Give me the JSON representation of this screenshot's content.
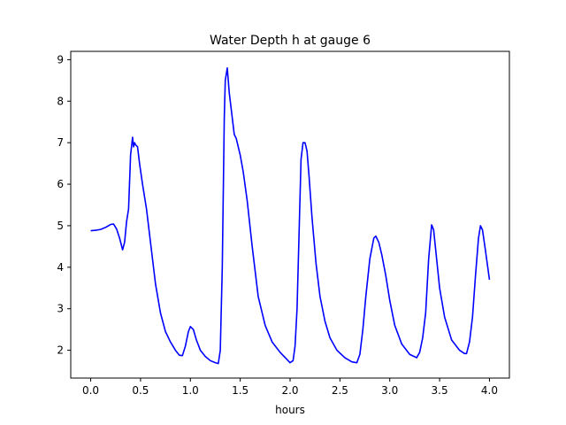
{
  "chart_data": {
    "type": "line",
    "title": "Water Depth h at gauge 6",
    "xlabel": "hours",
    "ylabel": "",
    "xlim": [
      -0.2,
      4.2
    ],
    "ylim": [
      1.33,
      9.2
    ],
    "xticks": [
      0.0,
      0.5,
      1.0,
      1.5,
      2.0,
      2.5,
      3.0,
      3.5,
      4.0
    ],
    "xtick_labels": [
      "0.0",
      "0.5",
      "1.0",
      "1.5",
      "2.0",
      "2.5",
      "3.0",
      "3.5",
      "4.0"
    ],
    "yticks": [
      2,
      3,
      4,
      5,
      6,
      7,
      8,
      9
    ],
    "ytick_labels": [
      "2",
      "3",
      "4",
      "5",
      "6",
      "7",
      "8",
      "9"
    ],
    "grid": false,
    "legend": "none",
    "series": [
      {
        "color": "#0000ff",
        "x": [
          0.0,
          0.05,
          0.1,
          0.15,
          0.2,
          0.23,
          0.26,
          0.29,
          0.32,
          0.34,
          0.36,
          0.38,
          0.4,
          0.42,
          0.43,
          0.44,
          0.45,
          0.47,
          0.49,
          0.52,
          0.56,
          0.6,
          0.65,
          0.7,
          0.75,
          0.8,
          0.85,
          0.89,
          0.92,
          0.95,
          0.98,
          1.0,
          1.03,
          1.06,
          1.1,
          1.15,
          1.2,
          1.25,
          1.28,
          1.3,
          1.32,
          1.34,
          1.35,
          1.37,
          1.39,
          1.42,
          1.44,
          1.46,
          1.48,
          1.5,
          1.53,
          1.57,
          1.62,
          1.68,
          1.75,
          1.82,
          1.9,
          1.96,
          2.0,
          2.03,
          2.05,
          2.07,
          2.09,
          2.11,
          2.13,
          2.15,
          2.17,
          2.19,
          2.22,
          2.26,
          2.3,
          2.35,
          2.4,
          2.47,
          2.55,
          2.62,
          2.67,
          2.7,
          2.73,
          2.76,
          2.8,
          2.84,
          2.86,
          2.89,
          2.92,
          2.96,
          3.0,
          3.05,
          3.12,
          3.2,
          3.27,
          3.3,
          3.33,
          3.36,
          3.39,
          3.42,
          3.44,
          3.47,
          3.5,
          3.55,
          3.62,
          3.7,
          3.75,
          3.77,
          3.8,
          3.83,
          3.86,
          3.89,
          3.91,
          3.93,
          3.96,
          4.0
        ],
        "y": [
          4.88,
          4.89,
          4.91,
          4.96,
          5.03,
          5.04,
          4.92,
          4.7,
          4.42,
          4.6,
          5.1,
          5.4,
          6.7,
          7.13,
          6.9,
          7.0,
          6.95,
          6.9,
          6.5,
          6.0,
          5.4,
          4.6,
          3.6,
          2.9,
          2.45,
          2.2,
          2.0,
          1.88,
          1.87,
          2.1,
          2.45,
          2.57,
          2.5,
          2.25,
          2.0,
          1.85,
          1.75,
          1.7,
          1.68,
          2.0,
          4.0,
          7.6,
          8.5,
          8.8,
          8.2,
          7.6,
          7.2,
          7.1,
          6.9,
          6.7,
          6.3,
          5.6,
          4.5,
          3.3,
          2.6,
          2.2,
          1.95,
          1.8,
          1.7,
          1.75,
          2.1,
          3.0,
          4.8,
          6.6,
          7.0,
          7.0,
          6.8,
          6.2,
          5.2,
          4.1,
          3.3,
          2.7,
          2.3,
          2.0,
          1.82,
          1.72,
          1.7,
          1.9,
          2.5,
          3.3,
          4.2,
          4.7,
          4.75,
          4.6,
          4.3,
          3.8,
          3.2,
          2.6,
          2.15,
          1.9,
          1.82,
          1.95,
          2.3,
          2.9,
          4.2,
          5.02,
          4.9,
          4.2,
          3.5,
          2.8,
          2.25,
          2.0,
          1.92,
          1.92,
          2.2,
          2.8,
          3.8,
          4.7,
          5.0,
          4.9,
          4.4,
          3.7
        ]
      }
    ]
  }
}
